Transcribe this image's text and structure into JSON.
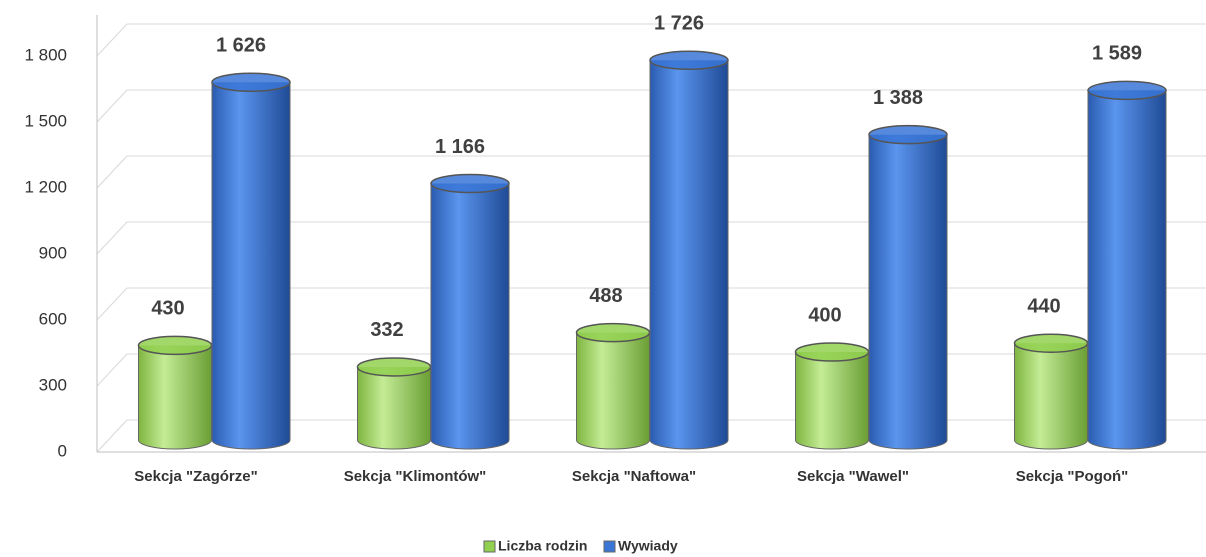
{
  "chart_data": {
    "type": "bar3d",
    "categories": [
      "Sekcja \"Zagórze\"",
      "Sekcja \"Klimontów\"",
      "Sekcja \"Naftowa\"",
      "Sekcja \"Wawel\"",
      "Sekcja \"Pogoń\""
    ],
    "series": [
      {
        "name": "Liczba rodzin",
        "color": "#92d050",
        "values": [
          430,
          332,
          488,
          400,
          440
        ]
      },
      {
        "name": "Wywiady",
        "color": "#3a76d6",
        "values": [
          1626,
          1166,
          1726,
          1388,
          1589
        ],
        "value_labels": [
          "1 626",
          "1 166",
          "1 726",
          "1 388",
          "1 589"
        ]
      }
    ],
    "ylim": [
      0,
      2000
    ],
    "yticks": [
      0,
      300,
      600,
      900,
      {
        "value": 1200,
        "label": "1 200"
      },
      {
        "value": 1500,
        "label": "1 500"
      },
      {
        "value": 1800,
        "label": "1 800"
      }
    ],
    "grid": true,
    "legend": "bottom"
  }
}
